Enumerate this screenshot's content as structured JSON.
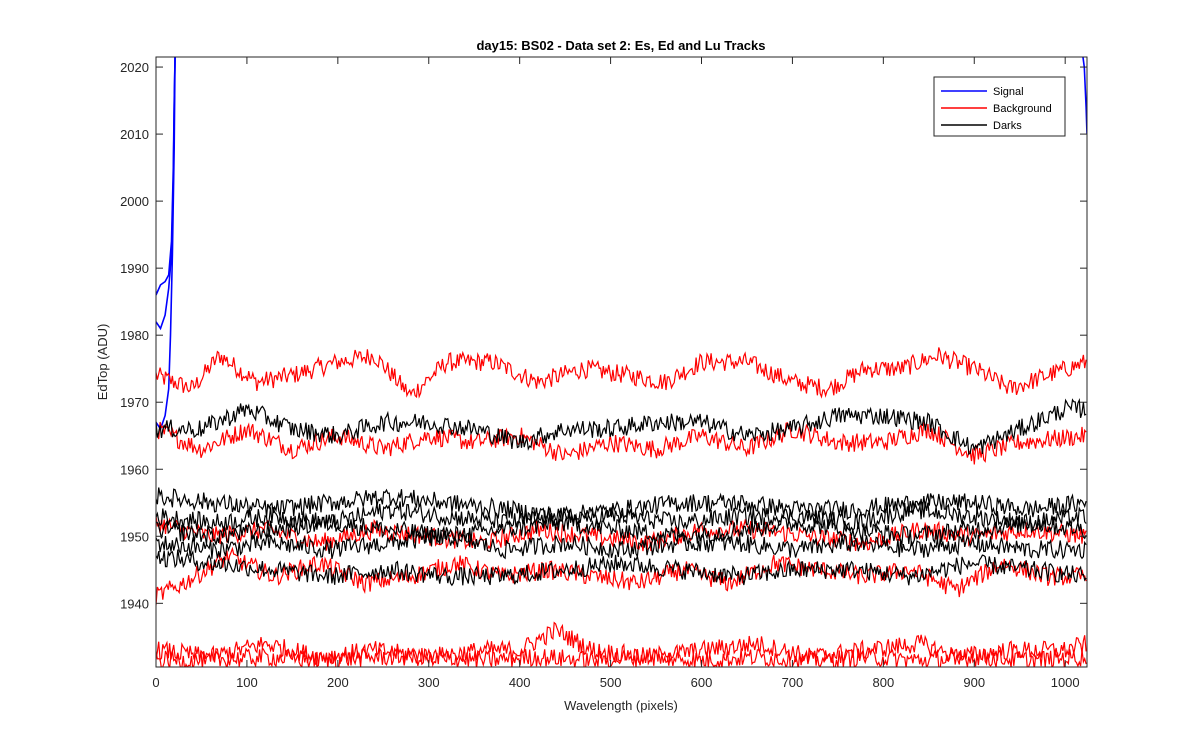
{
  "chart_data": {
    "type": "line",
    "title": "day15: BS02 - Data set 2: Es, Ed and Lu Tracks",
    "xlabel": "Wavelength (pixels)",
    "ylabel": "EdTop (ADU)",
    "xlim": [
      0,
      1024
    ],
    "ylim": [
      1930.5,
      2021.5
    ],
    "x_ticks": [
      0,
      100,
      200,
      300,
      400,
      500,
      600,
      700,
      800,
      900,
      1000
    ],
    "y_ticks": [
      1940,
      1950,
      1960,
      1970,
      1980,
      1990,
      2000,
      2010,
      2020
    ],
    "grid": false,
    "legend_position": "top-right",
    "legend": [
      {
        "name": "Signal",
        "color": "#0000ff"
      },
      {
        "name": "Background",
        "color": "#ff0000"
      },
      {
        "name": "Darks",
        "color": "#000000"
      }
    ],
    "series": [
      {
        "name": "Signal",
        "color": "#0000ff",
        "x": [
          0,
          5,
          10,
          14,
          17,
          19,
          20,
          21
        ],
        "y": [
          1986,
          1987.5,
          1988,
          1989,
          1994,
          2005,
          2015,
          2022
        ]
      },
      {
        "name": "Signal",
        "color": "#0000ff",
        "x": [
          0,
          5,
          10,
          14,
          17,
          19,
          20,
          21
        ],
        "y": [
          1982,
          1981,
          1983,
          1987,
          1992,
          2003,
          2014,
          2022
        ]
      },
      {
        "name": "Signal",
        "color": "#0000ff",
        "x": [
          0,
          5,
          10,
          14,
          16,
          18,
          20,
          21
        ],
        "y": [
          1967,
          1966,
          1968,
          1972,
          1980,
          1992,
          2008,
          2022
        ]
      },
      {
        "name": "Signal",
        "color": "#0000ff",
        "x": [
          1019,
          1021,
          1023,
          1024
        ],
        "y": [
          2022,
          2020,
          2014,
          2010
        ]
      },
      {
        "name": "Background",
        "color": "#ff0000",
        "x": [
          0,
          40,
          70,
          110,
          150,
          200,
          240,
          280,
          320,
          370,
          420,
          470,
          520,
          560,
          600,
          650,
          700,
          740,
          780,
          820,
          860,
          900,
          940,
          980,
          1024
        ],
        "y": [
          1974,
          1972,
          1977,
          1973,
          1974,
          1976,
          1977,
          1971,
          1976,
          1976,
          1973,
          1975,
          1974,
          1973,
          1976,
          1976,
          1973,
          1972,
          1975,
          1975,
          1977,
          1975,
          1972,
          1974,
          1976
        ]
      },
      {
        "name": "Background",
        "color": "#ff0000",
        "x": [
          0,
          50,
          100,
          150,
          200,
          250,
          300,
          350,
          400,
          450,
          500,
          550,
          600,
          650,
          700,
          750,
          800,
          850,
          900,
          950,
          1024
        ],
        "y": [
          1966,
          1963,
          1966,
          1963,
          1965,
          1963,
          1965,
          1964,
          1965,
          1962,
          1964,
          1963,
          1965,
          1963,
          1966,
          1964,
          1964,
          1966,
          1962,
          1964,
          1965
        ]
      },
      {
        "name": "Background",
        "color": "#ff0000",
        "x": [
          0,
          60,
          120,
          180,
          240,
          300,
          360,
          420,
          480,
          540,
          600,
          660,
          720,
          780,
          840,
          900,
          960,
          1024
        ],
        "y": [
          1952,
          1950,
          1951,
          1949,
          1951,
          1950,
          1949,
          1951,
          1950,
          1949,
          1951,
          1951,
          1950,
          1949,
          1951,
          1950,
          1951,
          1950
        ]
      },
      {
        "name": "Background",
        "color": "#ff0000",
        "x": [
          0,
          30,
          80,
          130,
          180,
          230,
          280,
          330,
          380,
          430,
          480,
          530,
          580,
          630,
          680,
          730,
          780,
          830,
          880,
          930,
          980,
          1024
        ],
        "y": [
          1941,
          1943,
          1947,
          1944,
          1946,
          1943,
          1944,
          1946,
          1944,
          1945,
          1944,
          1943,
          1945,
          1943,
          1946,
          1945,
          1944,
          1945,
          1942,
          1946,
          1944,
          1944
        ]
      },
      {
        "name": "Background",
        "color": "#ff0000",
        "x": [
          0,
          60,
          120,
          180,
          240,
          300,
          360,
          400,
          440,
          480,
          540,
          600,
          660,
          720,
          780,
          840,
          880,
          940,
          1000,
          1024
        ],
        "y": [
          1933,
          1932,
          1934,
          1932,
          1933,
          1932,
          1933,
          1933,
          1936,
          1933,
          1932,
          1933,
          1934,
          1932,
          1933,
          1934,
          1932,
          1933,
          1933,
          1934
        ]
      },
      {
        "name": "Background",
        "color": "#ff0000",
        "x": [
          0,
          60,
          120,
          180,
          240,
          300,
          360,
          420,
          480,
          540,
          600,
          660,
          720,
          780,
          840,
          900,
          960,
          1024
        ],
        "y": [
          1931.5,
          1931.5,
          1932,
          1931.5,
          1932,
          1932,
          1931.5,
          1932,
          1931.5,
          1932,
          1931.5,
          1932,
          1931.5,
          1932,
          1931.5,
          1932,
          1931.5,
          1932
        ]
      },
      {
        "name": "Darks",
        "color": "#000000",
        "x": [
          0,
          50,
          100,
          150,
          200,
          250,
          300,
          350,
          400,
          450,
          500,
          550,
          600,
          650,
          700,
          750,
          800,
          850,
          900,
          950,
          1000,
          1024
        ],
        "y": [
          1966,
          1966,
          1969,
          1966,
          1965,
          1967,
          1967,
          1966,
          1964,
          1966,
          1966,
          1967,
          1967,
          1965,
          1966,
          1968,
          1968,
          1967,
          1963,
          1966,
          1969,
          1969
        ]
      },
      {
        "name": "Darks",
        "color": "#000000",
        "x": [
          0,
          64,
          128,
          192,
          256,
          320,
          384,
          448,
          512,
          576,
          640,
          704,
          768,
          832,
          896,
          960,
          1024
        ],
        "y": [
          1956,
          1955,
          1954,
          1955,
          1956,
          1955,
          1954,
          1953,
          1954,
          1955,
          1955,
          1954,
          1954,
          1955,
          1955,
          1954,
          1955
        ]
      },
      {
        "name": "Darks",
        "color": "#000000",
        "x": [
          0,
          64,
          128,
          192,
          256,
          320,
          384,
          448,
          512,
          576,
          640,
          704,
          768,
          832,
          896,
          960,
          1024
        ],
        "y": [
          1953,
          1952,
          1953,
          1952,
          1954,
          1953,
          1952,
          1953,
          1953,
          1952,
          1953,
          1953,
          1952,
          1954,
          1953,
          1952,
          1953
        ]
      },
      {
        "name": "Darks",
        "color": "#000000",
        "x": [
          0,
          64,
          128,
          192,
          256,
          320,
          384,
          448,
          512,
          576,
          640,
          704,
          768,
          832,
          896,
          960,
          1024
        ],
        "y": [
          1951,
          1950,
          1951,
          1952,
          1951,
          1950,
          1951,
          1952,
          1951,
          1950,
          1951,
          1952,
          1951,
          1950,
          1951,
          1952,
          1951
        ]
      },
      {
        "name": "Darks",
        "color": "#000000",
        "x": [
          0,
          64,
          128,
          192,
          256,
          320,
          384,
          448,
          512,
          576,
          640,
          704,
          768,
          832,
          896,
          960,
          1024
        ],
        "y": [
          1947,
          1946,
          1945,
          1944,
          1945,
          1944,
          1944,
          1945,
          1946,
          1945,
          1944,
          1945,
          1945,
          1944,
          1946,
          1945,
          1944
        ]
      },
      {
        "name": "Darks",
        "color": "#000000",
        "x": [
          0,
          64,
          128,
          192,
          256,
          320,
          384,
          448,
          512,
          576,
          640,
          704,
          768,
          832,
          896,
          960,
          1024
        ],
        "y": [
          1949,
          1948,
          1949,
          1948,
          1949,
          1950,
          1948,
          1949,
          1948,
          1949,
          1949,
          1948,
          1949,
          1948,
          1949,
          1948,
          1948
        ]
      }
    ]
  }
}
